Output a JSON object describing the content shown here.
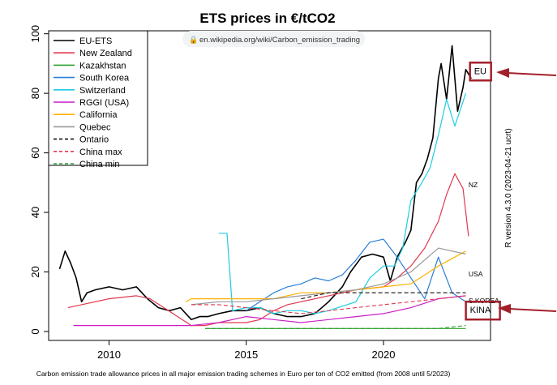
{
  "chart_data": {
    "type": "line",
    "title": "ETS prices in €/tCO2",
    "caption": "Carbon emission trade allowance prices in all major emission trading schemes in Euro per ton of CO2 emitted (from 2008 until 5/2023)",
    "side_label": "R version 4.3.0 (2023-04-21 ucrt)",
    "url_overlay": "en.wikipedia.org/wiki/Carbon_emission_trading",
    "xlabel": "",
    "ylabel": "",
    "xlim": [
      2007.8,
      2023.9
    ],
    "ylim": [
      -3,
      101
    ],
    "x_ticks": [
      2010,
      2015,
      2020
    ],
    "x_tick_labels": [
      "2010",
      "2015",
      "2020"
    ],
    "y_ticks": [
      0,
      20,
      40,
      60,
      80,
      100
    ],
    "y_tick_labels": [
      "0",
      "20",
      "40",
      "60",
      "80",
      "100"
    ],
    "grid": false,
    "legend_position": "top-left",
    "end_labels": [
      {
        "text": "EU",
        "x": 2023.3,
        "y": 86.5,
        "highlighted": true
      },
      {
        "text": "NZ",
        "x": 2023.1,
        "y": 48.5,
        "highlighted": false
      },
      {
        "text": "USA",
        "x": 2023.1,
        "y": 18.5,
        "highlighted": false
      },
      {
        "text": "S.KOREA",
        "x": 2023.1,
        "y": 9.5,
        "highlighted": false
      },
      {
        "text": "KINA",
        "x": 2023.15,
        "y": 6.2,
        "highlighted": true
      }
    ],
    "series": [
      {
        "name": "EU-ETS",
        "color": "#000000",
        "dash": "solid",
        "width": 1.6,
        "x": [
          2008.2,
          2008.4,
          2008.6,
          2008.8,
          2009.0,
          2009.2,
          2009.5,
          2010.0,
          2010.5,
          2011.0,
          2011.4,
          2011.8,
          2012.2,
          2012.6,
          2013.0,
          2013.3,
          2013.6,
          2014.0,
          2014.5,
          2015.0,
          2015.5,
          2016.0,
          2016.5,
          2017.0,
          2017.5,
          2018.0,
          2018.5,
          2018.8,
          2019.2,
          2019.6,
          2020.0,
          2020.25,
          2020.5,
          2020.8,
          2021.0,
          2021.2,
          2021.4,
          2021.6,
          2021.8,
          2022.0,
          2022.1,
          2022.3,
          2022.5,
          2022.7,
          2022.9,
          2023.0,
          2023.2
        ],
        "y": [
          21,
          27,
          23,
          18,
          10,
          13,
          14,
          15,
          14,
          15,
          11,
          8,
          7,
          8,
          4,
          5,
          5,
          6,
          7,
          7,
          8,
          6,
          5,
          5,
          6,
          10,
          15,
          20,
          25,
          26,
          25,
          17,
          25,
          30,
          34,
          50,
          53,
          58,
          65,
          85,
          90,
          78,
          96,
          74,
          82,
          88,
          85
        ]
      },
      {
        "name": "New Zealand",
        "color": "#e0384f",
        "dash": "solid",
        "width": 1.2,
        "x": [
          2008.5,
          2009.0,
          2010.0,
          2011.0,
          2011.5,
          2012.0,
          2012.5,
          2013.0,
          2013.5,
          2014.0,
          2014.5,
          2015.0,
          2015.5,
          2016.0,
          2016.5,
          2017.0,
          2018.0,
          2019.0,
          2020.0,
          2020.5,
          2021.0,
          2021.5,
          2022.0,
          2022.3,
          2022.6,
          2022.9,
          2023.1
        ],
        "y": [
          8,
          9,
          11,
          12,
          11,
          8,
          5,
          2,
          2,
          3,
          3,
          3,
          4,
          7,
          9,
          10,
          12,
          14,
          15,
          18,
          22,
          28,
          37,
          46,
          53,
          48,
          32
        ]
      },
      {
        "name": "Kazakhstan",
        "color": "#2ca02c",
        "dash": "solid",
        "width": 1.2,
        "x": [
          2013.5,
          2014.0,
          2016.0,
          2017.0,
          2018.0,
          2019.0,
          2020.0,
          2021.0,
          2022.0,
          2023.0
        ],
        "y": [
          1,
          1,
          1,
          1,
          1,
          1,
          1,
          1,
          1,
          1
        ]
      },
      {
        "name": "South Korea",
        "color": "#2a7fd6",
        "dash": "solid",
        "width": 1.2,
        "x": [
          2015.0,
          2015.5,
          2016.0,
          2016.5,
          2017.0,
          2017.5,
          2018.0,
          2018.5,
          2019.0,
          2019.5,
          2020.0,
          2020.5,
          2021.0,
          2021.5,
          2022.0,
          2022.5,
          2023.0
        ],
        "y": [
          7,
          10,
          13,
          15,
          16,
          18,
          17,
          19,
          24,
          30,
          31,
          25,
          18,
          11,
          25,
          13,
          10
        ]
      },
      {
        "name": "Switzerland",
        "color": "#1ecbe1",
        "dash": "solid",
        "width": 1.2,
        "x": [
          2014.0,
          2014.3,
          2014.5,
          2015.0,
          2015.5,
          2016.0,
          2016.5,
          2017.0,
          2017.5,
          2018.0,
          2019.0,
          2019.5,
          2020.0,
          2020.4,
          2020.7,
          2021.0,
          2021.4,
          2021.7,
          2022.0,
          2022.3,
          2022.6,
          2023.0
        ],
        "y": [
          33,
          33,
          7,
          8,
          8,
          6,
          7,
          7,
          6,
          7,
          10,
          18,
          22,
          22,
          28,
          44,
          50,
          55,
          66,
          78,
          69,
          80
        ]
      },
      {
        "name": "RGGI (USA)",
        "color": "#cc1fc4",
        "dash": "solid",
        "width": 1.2,
        "x": [
          2008.7,
          2009.0,
          2010.0,
          2011.0,
          2012.0,
          2013.0,
          2014.0,
          2015.0,
          2016.0,
          2017.0,
          2018.0,
          2019.0,
          2020.0,
          2021.0,
          2022.0,
          2023.0
        ],
        "y": [
          2,
          2,
          2,
          2,
          2,
          2,
          3,
          5,
          4,
          3,
          4,
          5,
          6,
          8,
          11,
          12
        ]
      },
      {
        "name": "California",
        "color": "#ffb000",
        "dash": "solid",
        "width": 1.2,
        "x": [
          2012.8,
          2013.0,
          2014.0,
          2015.0,
          2016.0,
          2017.0,
          2018.0,
          2019.0,
          2020.0,
          2021.0,
          2022.0,
          2023.0
        ],
        "y": [
          10,
          11,
          11,
          11,
          11,
          13,
          13,
          14,
          15,
          16,
          22,
          27
        ]
      },
      {
        "name": "Quebec",
        "color": "#999999",
        "dash": "solid",
        "width": 1.2,
        "x": [
          2013.0,
          2014.0,
          2015.0,
          2016.0,
          2017.0,
          2018.0,
          2019.0,
          2020.0,
          2021.0,
          2022.0,
          2023.0
        ],
        "y": [
          9,
          10,
          10,
          11,
          12,
          13,
          14,
          16,
          20,
          28,
          26
        ]
      },
      {
        "name": "Ontario",
        "color": "#111111",
        "dash": "dash",
        "width": 1.1,
        "x": [
          2017.0,
          2017.5,
          2018.0,
          2019.0,
          2020.0,
          2021.0,
          2022.0,
          2023.0
        ],
        "y": [
          11,
          12,
          13,
          13,
          13,
          13,
          13,
          13
        ]
      },
      {
        "name": "China max",
        "color": "#e0384f",
        "dash": "dash",
        "width": 1.1,
        "x": [
          2013.0,
          2014.0,
          2015.0,
          2016.0,
          2017.0,
          2018.0,
          2019.0,
          2020.0,
          2021.0,
          2022.0,
          2023.0
        ],
        "y": [
          9,
          9,
          8,
          7,
          6,
          7,
          8,
          9,
          10,
          11,
          12
        ]
      },
      {
        "name": "China min",
        "color": "#2ca02c",
        "dash": "dash",
        "width": 1.1,
        "x": [
          2013.5,
          2014.0,
          2015.0,
          2016.0,
          2017.0,
          2018.0,
          2019.0,
          2020.0,
          2021.0,
          2022.0,
          2023.0
        ],
        "y": [
          1,
          1,
          1,
          1,
          1,
          1,
          1,
          1,
          1,
          1,
          2
        ]
      }
    ]
  }
}
